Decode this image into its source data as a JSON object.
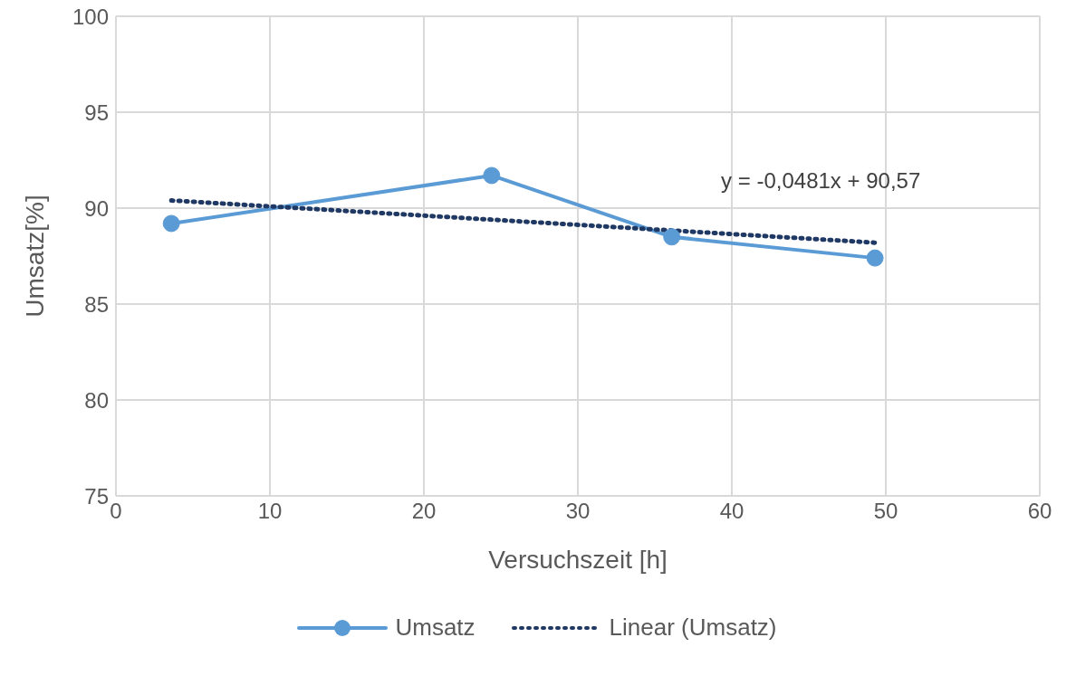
{
  "chart_data": {
    "type": "line",
    "xlabel": "Versuchszeit [h]",
    "ylabel": "Umsatz[%]",
    "xlim": [
      0,
      60
    ],
    "xticks": [
      0,
      10,
      20,
      30,
      40,
      50,
      60
    ],
    "ylim": [
      75,
      100
    ],
    "yticks": [
      75,
      80,
      85,
      90,
      95,
      100
    ],
    "grid": true,
    "legend": "bottom",
    "series": [
      {
        "name": "Umsatz",
        "color": "#5b9bd5",
        "x": [
          3.6,
          24.4,
          36.1,
          49.3
        ],
        "values": [
          89.2,
          91.7,
          88.5,
          87.4
        ],
        "marker": "circle",
        "line_style": "solid"
      },
      {
        "name": "Linear (Umsatz)",
        "type": "line",
        "color": "#1f3864",
        "x": [
          3.6,
          49.3
        ],
        "values": [
          90.4,
          88.2
        ],
        "marker": "none",
        "line_style": "dotted"
      }
    ],
    "annotations": [
      {
        "text": "y = -0,0481x + 90,57",
        "x": 49.3,
        "y": 88.2
      }
    ]
  }
}
